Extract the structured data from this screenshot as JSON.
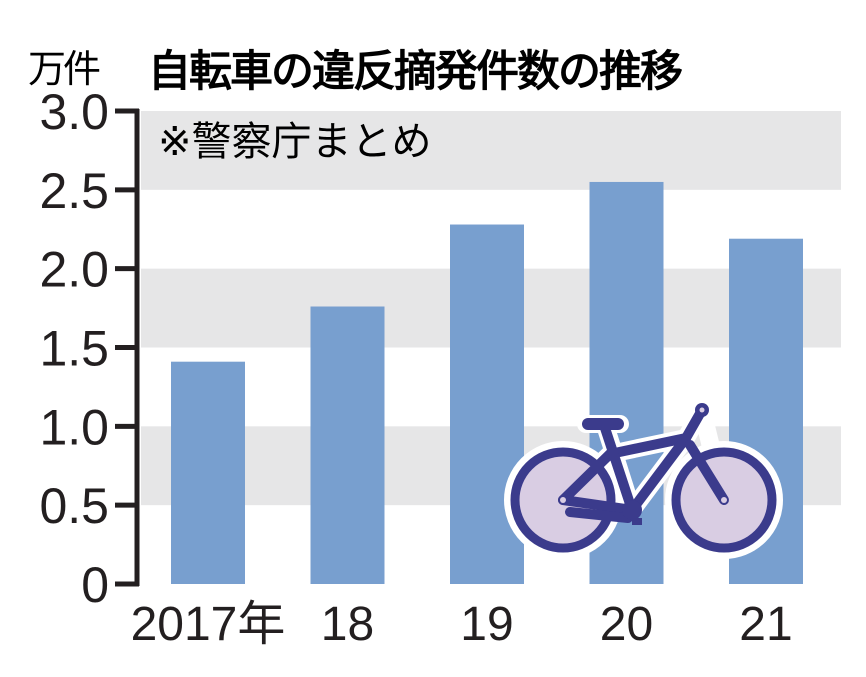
{
  "chart_data": {
    "type": "bar",
    "title": "自転車の違反摘発件数の推移",
    "unit_label": "万件",
    "note": "※警察庁まとめ",
    "xlabel": "",
    "ylabel": "万件",
    "categories": [
      "2017年",
      "18",
      "19",
      "20",
      "21"
    ],
    "values": [
      1.41,
      1.76,
      2.28,
      2.55,
      2.19
    ],
    "ylim": [
      0,
      3.0
    ],
    "yticks": [
      0,
      0.5,
      1.0,
      1.5,
      2.0,
      2.5,
      3.0
    ],
    "ytick_labels": [
      "0",
      "0.5",
      "1.0",
      "1.5",
      "2.0",
      "2.5",
      "3.0"
    ],
    "grid": "alternating horizontal bands",
    "legend": "none",
    "colors": {
      "bar": "#789fcf",
      "band": "#e6e6e7",
      "axis": "#231f20",
      "bicycle_frame": "#3b3b8c",
      "bicycle_wheel_fill": "#d9cde3"
    },
    "illustration": "bicycle-icon"
  }
}
